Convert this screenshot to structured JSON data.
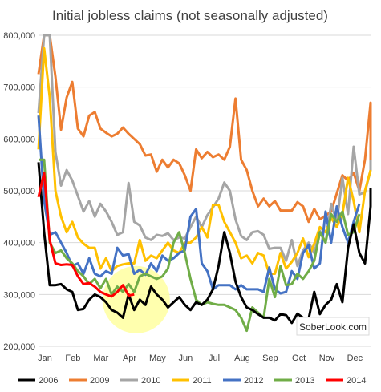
{
  "chart_data": {
    "type": "line",
    "title": "Initial jobless claims (not seasonally adjusted)",
    "xlabel": "",
    "ylabel": "",
    "ylim": [
      200000,
      800000
    ],
    "yticks": [
      200000,
      300000,
      400000,
      500000,
      600000,
      700000,
      800000
    ],
    "ytick_labels": [
      "200,000",
      "300,000",
      "400,000",
      "500,000",
      "600,000",
      "700,000",
      "800,000"
    ],
    "x_unit": "week of year",
    "xlim": [
      1,
      52
    ],
    "month_labels": [
      "Jan",
      "Feb",
      "Mar",
      "Apr",
      "May",
      "Jun",
      "Jul",
      "Aug",
      "Sep",
      "Oct",
      "Nov",
      "Dec"
    ],
    "month_positions": [
      1,
      5.3,
      9.6,
      14,
      18.3,
      22.6,
      27,
      31.3,
      35.6,
      40,
      44.3,
      48.6
    ],
    "grid": "horizontal",
    "legend_position": "bottom",
    "highlight": {
      "x": 16,
      "y": 290000,
      "color": "#ffffa0"
    },
    "watermark": "SoberLook.com",
    "series": [
      {
        "name": "2006",
        "color": "#000000",
        "values": [
          555000,
          420000,
          318000,
          318000,
          320000,
          310000,
          305000,
          270000,
          272000,
          290000,
          300000,
          295000,
          285000,
          270000,
          265000,
          255000,
          300000,
          270000,
          290000,
          280000,
          315000,
          300000,
          290000,
          275000,
          285000,
          295000,
          280000,
          270000,
          285000,
          280000,
          290000,
          310000,
          355000,
          420000,
          380000,
          325000,
          295000,
          275000,
          270000,
          262000,
          255000,
          255000,
          250000,
          262000,
          260000,
          245000,
          263000,
          255000,
          253000,
          305000,
          262000,
          280000,
          290000,
          320000,
          285000,
          390000,
          435000,
          380000,
          360000,
          470000,
          505000
        ]
      },
      {
        "name": "2009",
        "color": "#ed7d31",
        "values": [
          725000,
          800000,
          800000,
          720000,
          618000,
          680000,
          710000,
          620000,
          605000,
          645000,
          652000,
          620000,
          612000,
          605000,
          610000,
          622000,
          610000,
          600000,
          590000,
          568000,
          570000,
          537000,
          560000,
          545000,
          560000,
          553000,
          530000,
          500000,
          580000,
          563000,
          575000,
          565000,
          570000,
          560000,
          585000,
          678000,
          560000,
          540000,
          500000,
          470000,
          485000,
          470000,
          480000,
          462000,
          462000,
          462000,
          478000,
          470000,
          440000,
          465000,
          445000,
          452000,
          460000,
          495000,
          530000,
          520000,
          535000,
          500000,
          560000,
          670000,
          560000,
          566000,
          562000
        ]
      },
      {
        "name": "2010",
        "color": "#a5a5a5",
        "values": [
          650000,
          800000,
          800000,
          575000,
          510000,
          540000,
          520000,
          490000,
          460000,
          480000,
          450000,
          475000,
          460000,
          440000,
          415000,
          420000,
          515000,
          440000,
          433000,
          410000,
          405000,
          415000,
          413000,
          418000,
          405000,
          410000,
          408000,
          430000,
          450000,
          430000,
          453000,
          468000,
          485000,
          516000,
          500000,
          445000,
          413000,
          405000,
          420000,
          422000,
          415000,
          388000,
          390000,
          390000,
          365000,
          405000,
          355000,
          385000,
          400000,
          380000,
          423000,
          400000,
          475000,
          440000,
          525000,
          455000,
          585000,
          493000,
          497000,
          540000,
          560000
        ]
      },
      {
        "name": "2011",
        "color": "#ffc000",
        "values": [
          580000,
          775000,
          680000,
          500000,
          450000,
          420000,
          440000,
          410000,
          398000,
          390000,
          390000,
          350000,
          370000,
          345000,
          355000,
          358000,
          360000,
          360000,
          405000,
          365000,
          375000,
          370000,
          385000,
          400000,
          385000,
          380000,
          400000,
          400000,
          410000,
          430000,
          410000,
          473000,
          473000,
          440000,
          420000,
          400000,
          370000,
          375000,
          360000,
          380000,
          375000,
          340000,
          340000,
          380000,
          350000,
          363000,
          380000,
          408000,
          372000,
          398000,
          430000,
          420000,
          448000,
          430000,
          455000,
          525000,
          480000,
          420000,
          500000,
          540000
        ]
      },
      {
        "name": "2012",
        "color": "#4472c4",
        "values": [
          645000,
          480000,
          415000,
          420000,
          400000,
          380000,
          355000,
          360000,
          340000,
          370000,
          340000,
          335000,
          345000,
          340000,
          390000,
          375000,
          378000,
          340000,
          348000,
          338000,
          360000,
          345000,
          375000,
          365000,
          370000,
          380000,
          385000,
          450000,
          465000,
          360000,
          345000,
          310000,
          318000,
          318000,
          318000,
          310000,
          318000,
          310000,
          310000,
          310000,
          305000,
          352000,
          310000,
          302000,
          305000,
          345000,
          330000,
          380000,
          395000,
          350000,
          360000,
          460000,
          400000,
          470000,
          430000,
          400000,
          440000,
          475000
        ]
      },
      {
        "name": "2013",
        "color": "#70ad47",
        "values": [
          560000,
          560000,
          400000,
          380000,
          385000,
          370000,
          360000,
          345000,
          335000,
          320000,
          330000,
          312000,
          330000,
          300000,
          315000,
          305000,
          320000,
          305000,
          335000,
          340000,
          335000,
          330000,
          335000,
          350000,
          400000,
          420000,
          380000,
          330000,
          290000,
          280000,
          285000,
          282000,
          280000,
          280000,
          275000,
          270000,
          255000,
          230000,
          275000,
          265000,
          255000,
          330000,
          295000,
          355000,
          318000,
          320000,
          340000,
          330000,
          345000,
          365000,
          420000,
          400000,
          455000,
          440000,
          460000,
          415000,
          420000,
          455000
        ]
      },
      {
        "name": "2014",
        "color": "#ff0000",
        "values": [
          488000,
          535000,
          405000,
          360000,
          357000,
          358000,
          357000,
          335000,
          320000,
          322000,
          315000,
          305000,
          300000,
          296000,
          305000,
          318000,
          298000,
          300000
        ]
      }
    ]
  }
}
